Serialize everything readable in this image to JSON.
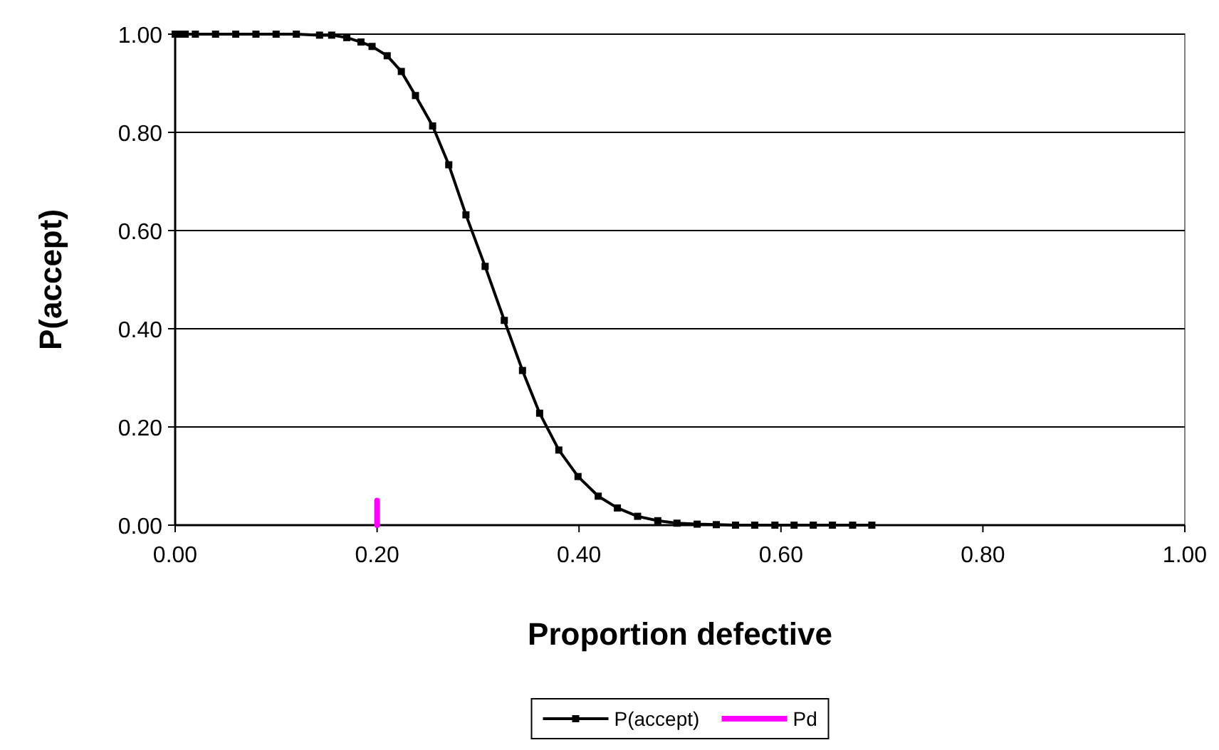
{
  "chart_data": {
    "type": "line",
    "xlabel": "Proportion defective",
    "ylabel": "P(accept)",
    "xlim": [
      0,
      1
    ],
    "ylim": [
      0,
      1
    ],
    "xticks": [
      {
        "value": 0,
        "label": "0.00"
      },
      {
        "value": 0.2,
        "label": "0.20"
      },
      {
        "value": 0.4,
        "label": "0.40"
      },
      {
        "value": 0.6,
        "label": "0.60"
      },
      {
        "value": 0.8,
        "label": "0.80"
      },
      {
        "value": 1,
        "label": "1.00"
      }
    ],
    "yticks": [
      {
        "value": 0,
        "label": "0.00"
      },
      {
        "value": 0.2,
        "label": "0.20"
      },
      {
        "value": 0.4,
        "label": "0.40"
      },
      {
        "value": 0.6,
        "label": "0.60"
      },
      {
        "value": 0.8,
        "label": "0.80"
      },
      {
        "value": 1,
        "label": "1.00"
      }
    ],
    "grid": "y",
    "legend": "bottom",
    "series": [
      {
        "name": "P(accept)",
        "color": "#000000",
        "marker": "square",
        "x": [
          0,
          0.005,
          0.01,
          0.02,
          0.04,
          0.06,
          0.08,
          0.1,
          0.12,
          0.143,
          0.155,
          0.17,
          0.184,
          0.195,
          0.21,
          0.224,
          0.238,
          0.255,
          0.271,
          0.288,
          0.307,
          0.326,
          0.344,
          0.361,
          0.38,
          0.399,
          0.419,
          0.438,
          0.458,
          0.478,
          0.497,
          0.517,
          0.536,
          0.555,
          0.574,
          0.594,
          0.613,
          0.632,
          0.651,
          0.671,
          0.69
        ],
        "values": [
          1,
          1,
          1,
          1,
          1,
          1,
          1,
          1,
          1,
          0.998,
          0.998,
          0.993,
          0.984,
          0.975,
          0.956,
          0.924,
          0.875,
          0.813,
          0.734,
          0.632,
          0.527,
          0.417,
          0.315,
          0.228,
          0.153,
          0.099,
          0.059,
          0.035,
          0.018,
          0.009,
          0.004,
          0.002,
          0.001,
          0,
          0,
          0,
          0,
          0,
          0,
          0,
          0
        ]
      },
      {
        "name": "Pd",
        "color": "#ff00ff",
        "marker": "none",
        "x": [
          0.2,
          0.2
        ],
        "values": [
          0,
          0.05
        ]
      }
    ]
  }
}
